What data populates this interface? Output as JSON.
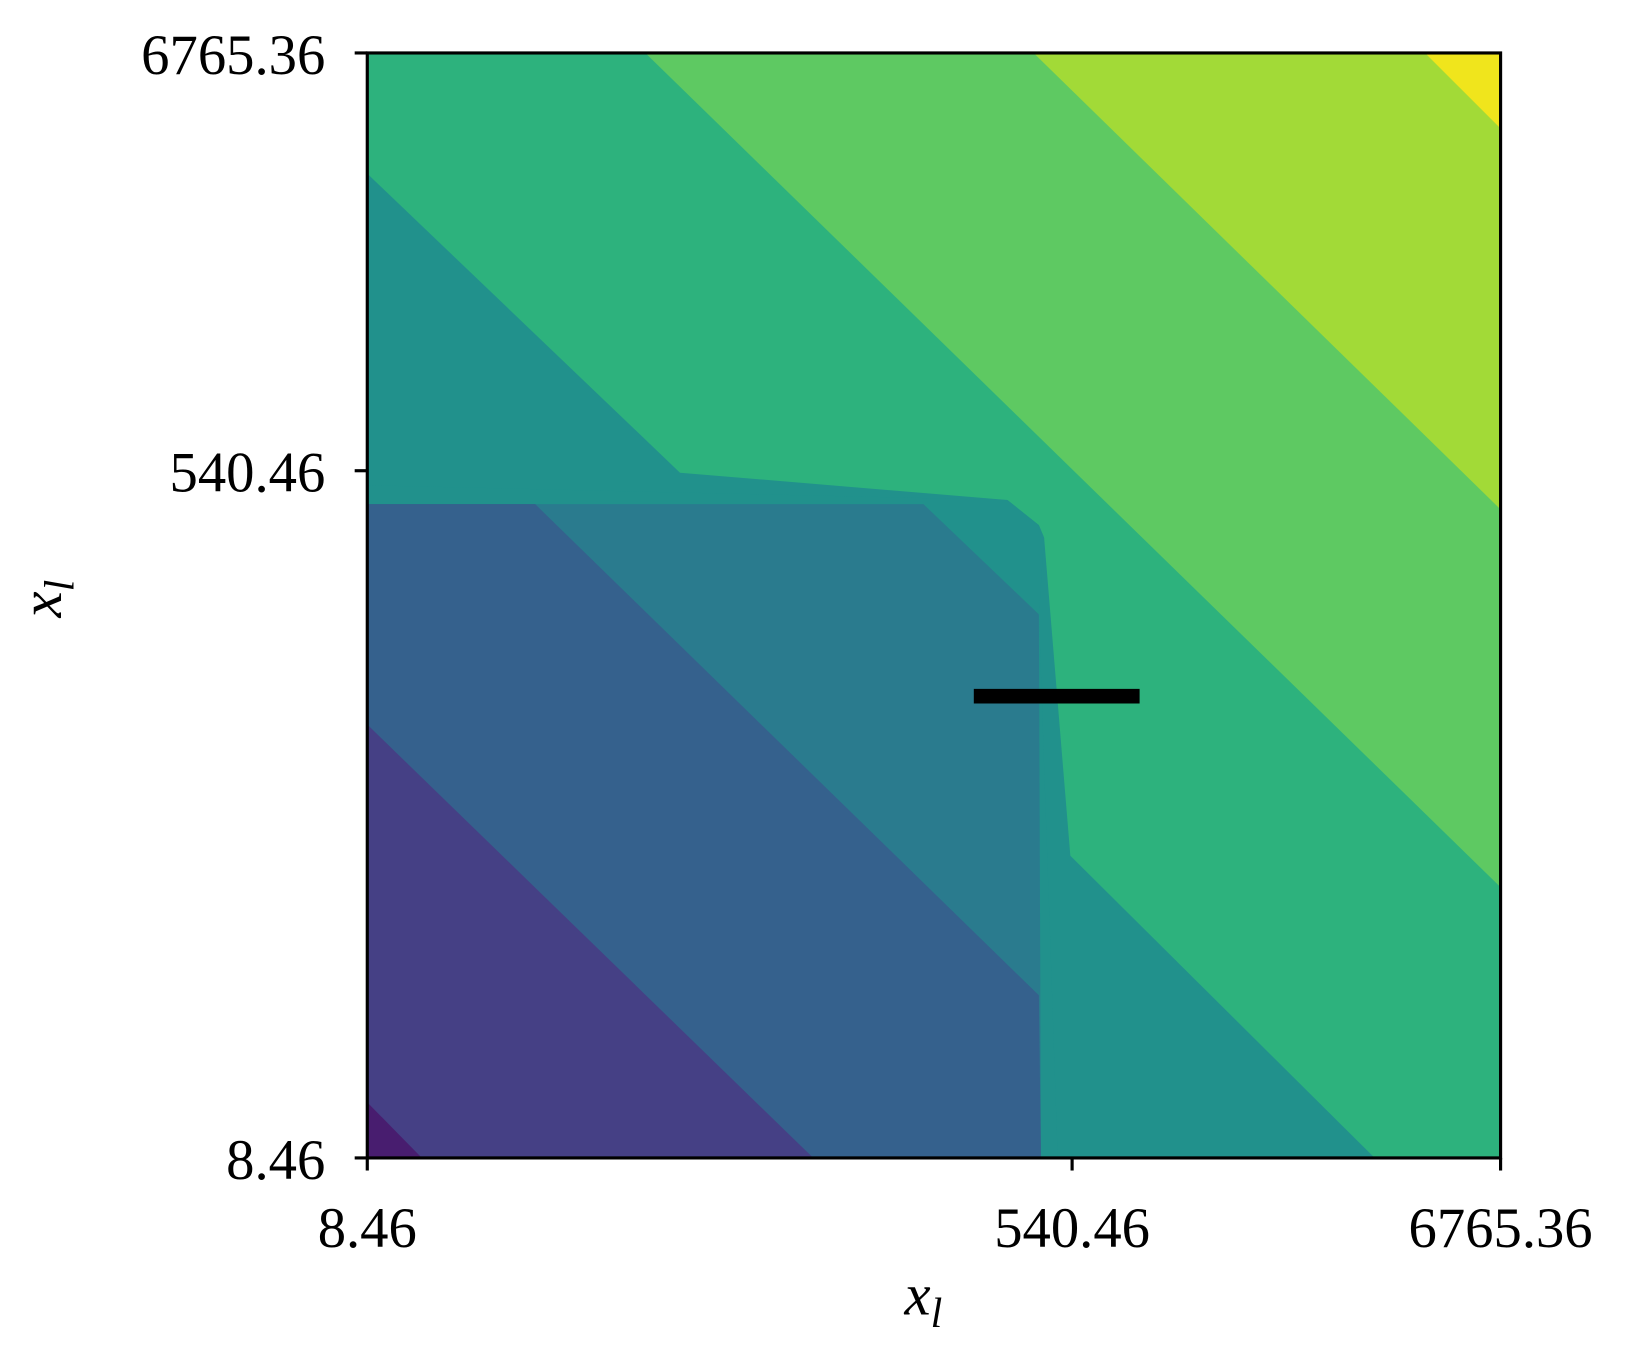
{
  "chart_data": {
    "type": "contour",
    "xlabel": "x",
    "xlabel_subscript": "l",
    "ylabel": "x",
    "ylabel_subscript": "l",
    "xscale": "log",
    "yscale": "log",
    "xlim": [
      8.46,
      6765.36
    ],
    "ylim": [
      8.46,
      6765.36
    ],
    "xticks": [
      8.46,
      540.46,
      6765.36
    ],
    "yticks": [
      8.46,
      540.46,
      6765.36
    ],
    "grid": false
  }
}
